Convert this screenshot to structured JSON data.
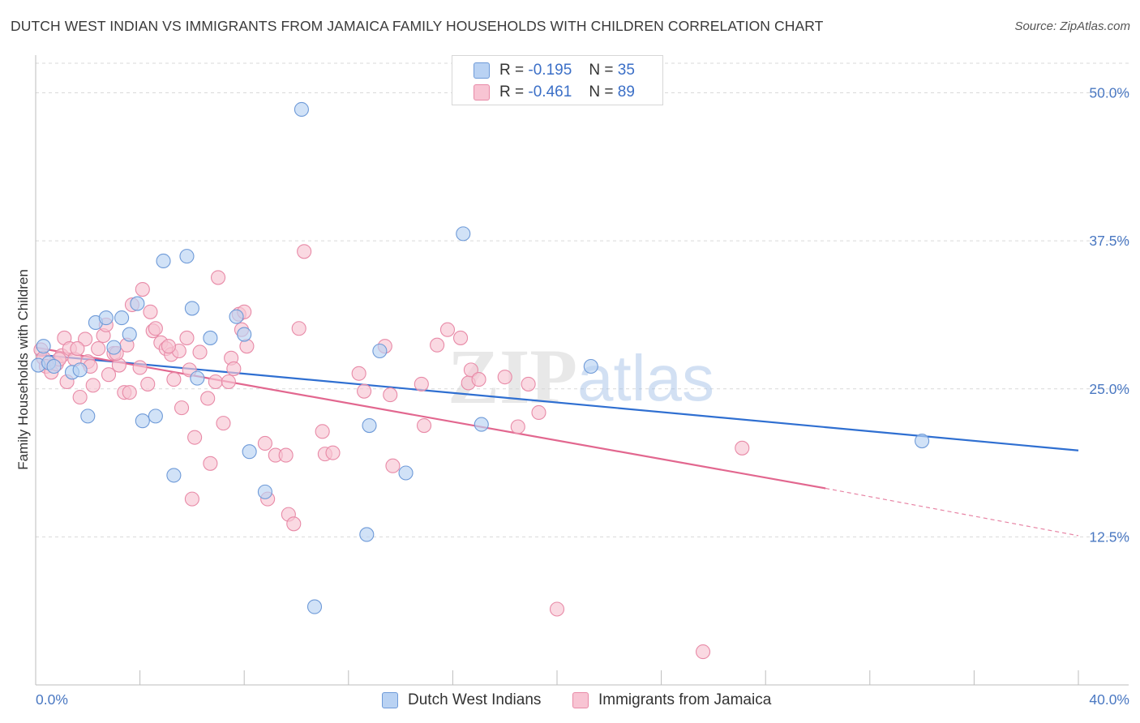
{
  "header": {
    "title": "DUTCH WEST INDIAN VS IMMIGRANTS FROM JAMAICA FAMILY HOUSEHOLDS WITH CHILDREN CORRELATION CHART",
    "source": "Source: ZipAtlas.com"
  },
  "watermark": {
    "zip": "ZIP",
    "atlas": "atlas"
  },
  "legend": {
    "row1": {
      "r_label": "R =",
      "r_value": "-0.195",
      "n_label": "N =",
      "n_value": "35"
    },
    "row2": {
      "r_label": "R =",
      "r_value": "-0.461",
      "n_label": "N =",
      "n_value": "89"
    }
  },
  "colors": {
    "blue_fill": "#b9d2f3",
    "blue_stroke": "#6e9ad8",
    "blue_line": "#2f6fd1",
    "pink_fill": "#f8c4d3",
    "pink_stroke": "#e88aa7",
    "pink_line": "#e2678f",
    "grid": "#d9d9d9",
    "tick_text": "#4a78c2"
  },
  "chart_data": {
    "type": "scatter",
    "title": "DUTCH WEST INDIAN VS IMMIGRANTS FROM JAMAICA FAMILY HOUSEHOLDS WITH CHILDREN CORRELATION CHART",
    "xlabel": "",
    "ylabel": "Family Households with Children",
    "xlim": [
      0,
      40
    ],
    "ylim": [
      0,
      52.5
    ],
    "x_tick_labels": [
      "0.0%",
      "40.0%"
    ],
    "y_ticks": [
      12.5,
      25.0,
      37.5,
      50.0
    ],
    "y_tick_labels": [
      "12.5%",
      "25.0%",
      "37.5%",
      "50.0%"
    ],
    "grid": "horizontal dashed",
    "legend_position": "top-center",
    "series": [
      {
        "name": "Dutch West Indians",
        "color": "#6e9ad8",
        "trend": {
          "x": [
            0,
            40
          ],
          "y": [
            27.9,
            19.8
          ]
        },
        "points": [
          [
            0.1,
            27.0
          ],
          [
            0.3,
            28.6
          ],
          [
            0.5,
            27.2
          ],
          [
            0.7,
            26.9
          ],
          [
            1.4,
            26.4
          ],
          [
            1.7,
            26.6
          ],
          [
            2.3,
            30.6
          ],
          [
            2.7,
            31.0
          ],
          [
            3.0,
            28.5
          ],
          [
            3.3,
            31.0
          ],
          [
            3.6,
            29.6
          ],
          [
            3.9,
            32.2
          ],
          [
            2.0,
            22.7
          ],
          [
            4.1,
            22.3
          ],
          [
            4.6,
            22.7
          ],
          [
            4.9,
            35.8
          ],
          [
            5.3,
            17.7
          ],
          [
            5.8,
            36.2
          ],
          [
            6.0,
            31.8
          ],
          [
            6.2,
            25.9
          ],
          [
            6.7,
            29.3
          ],
          [
            7.7,
            31.1
          ],
          [
            8.0,
            29.6
          ],
          [
            8.2,
            19.7
          ],
          [
            8.8,
            16.3
          ],
          [
            10.2,
            48.6
          ],
          [
            10.7,
            6.6
          ],
          [
            12.7,
            12.7
          ],
          [
            12.8,
            21.9
          ],
          [
            13.2,
            28.2
          ],
          [
            14.2,
            17.9
          ],
          [
            16.4,
            38.1
          ],
          [
            17.1,
            22.0
          ],
          [
            21.3,
            26.9
          ],
          [
            34.0,
            20.6
          ]
        ]
      },
      {
        "name": "Immigrants from Jamaica",
        "color": "#e88aa7",
        "trend": {
          "x": [
            0,
            30.3
          ],
          "y": [
            28.5,
            16.6
          ]
        },
        "trend_dashed": {
          "x": [
            30.3,
            40
          ],
          "y": [
            16.6,
            12.6
          ]
        },
        "points": [
          [
            0.2,
            28.3
          ],
          [
            0.3,
            27.6
          ],
          [
            0.4,
            26.9
          ],
          [
            0.6,
            26.4
          ],
          [
            0.8,
            27.1
          ],
          [
            1.0,
            27.8
          ],
          [
            1.1,
            29.3
          ],
          [
            1.2,
            25.6
          ],
          [
            1.3,
            28.4
          ],
          [
            1.5,
            27.5
          ],
          [
            1.7,
            24.3
          ],
          [
            1.9,
            29.2
          ],
          [
            2.0,
            27.3
          ],
          [
            2.2,
            25.3
          ],
          [
            2.4,
            28.4
          ],
          [
            2.6,
            29.5
          ],
          [
            2.7,
            30.4
          ],
          [
            2.8,
            26.2
          ],
          [
            3.0,
            28.0
          ],
          [
            3.2,
            27.0
          ],
          [
            3.4,
            24.7
          ],
          [
            3.5,
            28.7
          ],
          [
            3.6,
            24.7
          ],
          [
            3.7,
            32.1
          ],
          [
            4.0,
            26.8
          ],
          [
            4.1,
            33.4
          ],
          [
            4.3,
            25.4
          ],
          [
            4.4,
            31.5
          ],
          [
            4.5,
            29.9
          ],
          [
            4.6,
            30.1
          ],
          [
            4.8,
            28.9
          ],
          [
            5.0,
            28.4
          ],
          [
            5.2,
            27.9
          ],
          [
            5.3,
            25.8
          ],
          [
            5.5,
            28.2
          ],
          [
            5.6,
            23.4
          ],
          [
            5.8,
            29.3
          ],
          [
            5.9,
            26.6
          ],
          [
            6.0,
            15.7
          ],
          [
            6.1,
            20.9
          ],
          [
            6.3,
            28.1
          ],
          [
            6.6,
            24.2
          ],
          [
            6.7,
            18.7
          ],
          [
            6.9,
            25.6
          ],
          [
            7.0,
            34.4
          ],
          [
            7.2,
            22.1
          ],
          [
            7.4,
            25.6
          ],
          [
            7.5,
            27.6
          ],
          [
            7.6,
            26.7
          ],
          [
            7.8,
            31.3
          ],
          [
            7.9,
            30.0
          ],
          [
            8.0,
            31.5
          ],
          [
            8.1,
            28.6
          ],
          [
            8.8,
            20.4
          ],
          [
            8.9,
            15.7
          ],
          [
            9.2,
            19.4
          ],
          [
            9.6,
            19.4
          ],
          [
            9.7,
            14.4
          ],
          [
            9.9,
            13.6
          ],
          [
            10.1,
            30.1
          ],
          [
            10.3,
            36.6
          ],
          [
            11.0,
            21.4
          ],
          [
            11.1,
            19.5
          ],
          [
            11.4,
            19.6
          ],
          [
            12.4,
            26.3
          ],
          [
            12.6,
            24.8
          ],
          [
            13.4,
            28.6
          ],
          [
            13.6,
            24.5
          ],
          [
            13.7,
            18.5
          ],
          [
            14.8,
            25.4
          ],
          [
            14.9,
            21.9
          ],
          [
            15.4,
            28.7
          ],
          [
            15.8,
            30.0
          ],
          [
            16.3,
            29.3
          ],
          [
            16.6,
            25.5
          ],
          [
            16.7,
            26.6
          ],
          [
            17.0,
            25.8
          ],
          [
            18.0,
            26.0
          ],
          [
            18.5,
            21.8
          ],
          [
            18.9,
            25.4
          ],
          [
            19.3,
            23.0
          ],
          [
            20.0,
            6.4
          ],
          [
            25.6,
            2.8
          ],
          [
            27.1,
            20.0
          ],
          [
            5.1,
            28.6
          ],
          [
            3.1,
            28.0
          ],
          [
            2.1,
            26.9
          ],
          [
            0.9,
            27.5
          ],
          [
            1.6,
            28.4
          ]
        ]
      }
    ]
  },
  "bottom_legend": {
    "item1": "Dutch West Indians",
    "item2": "Immigrants from Jamaica"
  }
}
